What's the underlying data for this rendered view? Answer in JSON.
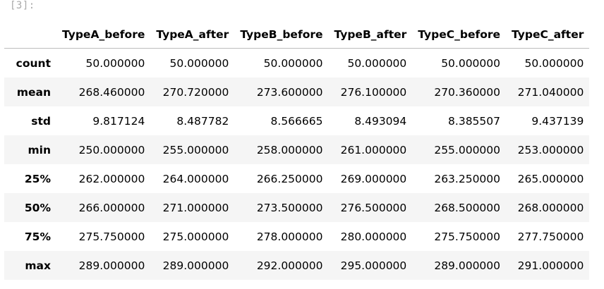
{
  "cell": {
    "prompt": "[3]:"
  },
  "table": {
    "columns": [
      "TypeA_before",
      "TypeA_after",
      "TypeB_before",
      "TypeB_after",
      "TypeC_before",
      "TypeC_after"
    ],
    "rows": [
      {
        "label": "count",
        "values": [
          "50.000000",
          "50.000000",
          "50.000000",
          "50.000000",
          "50.000000",
          "50.000000"
        ]
      },
      {
        "label": "mean",
        "values": [
          "268.460000",
          "270.720000",
          "273.600000",
          "276.100000",
          "270.360000",
          "271.040000"
        ]
      },
      {
        "label": "std",
        "values": [
          "9.817124",
          "8.487782",
          "8.566665",
          "8.493094",
          "8.385507",
          "9.437139"
        ]
      },
      {
        "label": "min",
        "values": [
          "250.000000",
          "255.000000",
          "258.000000",
          "261.000000",
          "255.000000",
          "253.000000"
        ]
      },
      {
        "label": "25%",
        "values": [
          "262.000000",
          "264.000000",
          "266.250000",
          "269.000000",
          "263.250000",
          "265.000000"
        ]
      },
      {
        "label": "50%",
        "values": [
          "266.000000",
          "271.000000",
          "273.500000",
          "276.500000",
          "268.500000",
          "268.000000"
        ]
      },
      {
        "label": "75%",
        "values": [
          "275.750000",
          "275.000000",
          "278.000000",
          "280.000000",
          "275.750000",
          "277.750000"
        ]
      },
      {
        "label": "max",
        "values": [
          "289.000000",
          "289.000000",
          "292.000000",
          "295.000000",
          "289.000000",
          "291.000000"
        ]
      }
    ]
  }
}
